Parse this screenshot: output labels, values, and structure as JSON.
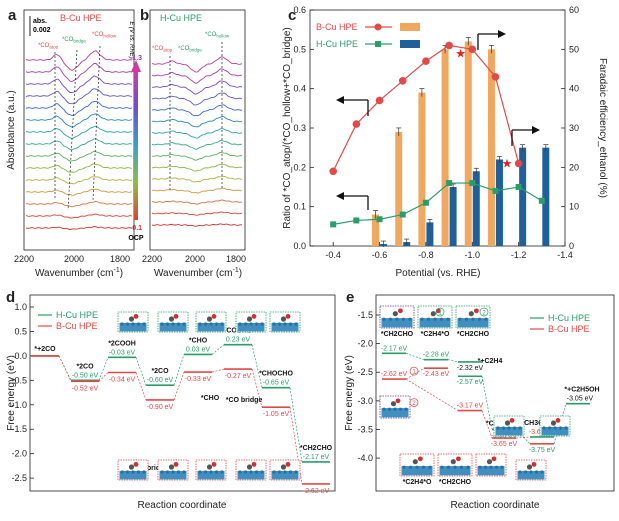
{
  "colors": {
    "bcu": "#e24a4a",
    "hcu": "#2a9d6a",
    "bar_b": "#f0a860",
    "bar_h": "#1f5f9a"
  },
  "panel_a": {
    "letter": "a",
    "legend": "B-Cu HPE",
    "scale": "abs.",
    "scale_val": "0.002",
    "peaks": [
      "*CO",
      "*CO",
      "*CO"
    ],
    "peak_subs": [
      "atop",
      "bridge",
      "hollow"
    ],
    "x_ticks": [
      "2200",
      "2000",
      "1800"
    ],
    "xlabel": "Wavenumber (cm",
    "xlabel_sup": "-1",
    "xlabel_end": ")",
    "ylabel": "Absorbance (a.u.)"
  },
  "panel_b": {
    "letter": "b",
    "legend": "H-Cu HPE",
    "peaks": [
      "*CO",
      "*CO",
      "*CO"
    ],
    "peak_subs": [
      "atop",
      "bridge",
      "hollow"
    ],
    "x_ticks": [
      "2200",
      "2000",
      "1800"
    ],
    "xlabel": "Wavenumber (cm",
    "xlabel_sup": "-1",
    "xlabel_end": ")",
    "ylabel": "Absorbance (a.u.)",
    "potential_label": "E (V vs. RHE)",
    "pot_top": "-1.3",
    "pot_bottom": "-0.1",
    "pot_ocp": "OCP"
  },
  "chart_data": {
    "type": "bar",
    "title": "",
    "x": [
      -0.4,
      -0.5,
      -0.6,
      -0.7,
      -0.8,
      -0.9,
      -1.0,
      -1.1,
      -1.2,
      -1.3
    ],
    "xlabel": "Potential (vs. RHE)",
    "x_ticks": [
      "-0.4",
      "-0.6",
      "-0.8",
      "-1.0",
      "-1.2",
      "-1.4"
    ],
    "y_left_label": "Ratio of *CO_atop/(*CO_hollow+*CO_bridge)",
    "y_left_ticks": [
      "0.0",
      "0.1",
      "0.2",
      "0.3",
      "0.4",
      "0.5",
      "0.6"
    ],
    "y_right_label": "Faradaic efficiency_ethanol (%)",
    "y_right_ticks": [
      "0",
      "10",
      "20",
      "30",
      "40",
      "50",
      "60"
    ],
    "series": [
      {
        "name": "B-Cu HPE ratio",
        "axis": "left",
        "x": [
          -0.4,
          -0.5,
          -0.6,
          -0.7,
          -0.8,
          -0.9,
          -1.0,
          -1.1,
          -1.2
        ],
        "values": [
          0.19,
          0.31,
          0.37,
          0.42,
          0.47,
          0.51,
          0.5,
          0.43,
          0.21
        ]
      },
      {
        "name": "H-Cu HPE ratio",
        "axis": "left",
        "x": [
          -0.4,
          -0.5,
          -0.6,
          -0.7,
          -0.8,
          -0.9,
          -1.0,
          -1.1,
          -1.2,
          -1.3
        ],
        "values": [
          0.055,
          0.065,
          0.068,
          0.08,
          0.11,
          0.16,
          0.16,
          0.14,
          0.15,
          0.115
        ]
      },
      {
        "name": "B-Cu HPE FE ethanol",
        "axis": "right",
        "x": [
          -0.6,
          -0.7,
          -0.8,
          -0.9,
          -1.0,
          -1.1
        ],
        "values": [
          8,
          29,
          39,
          50,
          52,
          50
        ]
      },
      {
        "name": "H-Cu HPE FE ethanol",
        "axis": "right",
        "x": [
          -0.6,
          -0.7,
          -0.8,
          -0.9,
          -1.0,
          -1.1,
          -1.2,
          -1.3
        ],
        "values": [
          0.5,
          1,
          6,
          15,
          19,
          22,
          25,
          25
        ]
      }
    ],
    "panel_letter": "c",
    "legend": [
      "B-Cu HPE",
      "H-Cu HPE"
    ]
  },
  "panel_d": {
    "letter": "d",
    "legend": [
      "H-Cu HPE",
      "B-Cu HPE"
    ],
    "xlabel": "Reaction coordinate",
    "ylabel": "Free energy (eV)",
    "y_ticks": [
      "1.0",
      "0.5",
      "0.0",
      "-0.5",
      "-1.0",
      "-1.5",
      "-2.0",
      "-2.5"
    ],
    "states": [
      {
        "label": "*+2CO",
        "h": "",
        "b": ""
      },
      {
        "label": "*2CO",
        "h": "-0.50 eV",
        "b": "-0.52 eV"
      },
      {
        "label": "*2COOH",
        "h": "-0.03 eV",
        "b": "-0.34 eV"
      },
      {
        "label": "*2CO",
        "h": "-0.60 eV",
        "b": "-0.90 eV"
      },
      {
        "label": "*CHO",
        "h": "0.03 eV",
        "b": "-0.33 eV"
      },
      {
        "label": "*COCHO",
        "h": "0.23 eV",
        "b": "-0.27 eV"
      },
      {
        "label": "*CHOCHO",
        "h": "-0.65 eV",
        "b": "-1.05 eV"
      },
      {
        "label": "*CH2CHO",
        "h": "-2.17 eV",
        "b": "-2.62 eV"
      }
    ],
    "annotations": [
      "*CO",
      "*CO",
      "*CHO",
      "*CO",
      "*CHO",
      "*CO",
      "*CO"
    ],
    "ann_subs": [
      "bridge",
      "hollow",
      "",
      "bridge",
      "",
      "bridge",
      "atop"
    ]
  },
  "panel_e": {
    "letter": "e",
    "legend": [
      "H-Cu HPE",
      "B-Cu HPE"
    ],
    "xlabel": "Reaction coordinate",
    "ylabel": "Free energy (eV)",
    "y_ticks": [
      "-1.5",
      "-2.0",
      "-2.5",
      "-3.0",
      "-3.5",
      "-4.0"
    ],
    "tags": [
      "*CH2CHO",
      "*C2H4*O",
      "*CH2CHO",
      "*C2H4*O",
      "*CH2CHO"
    ],
    "energies": [
      "-2.17 eV",
      "-2.28 eV",
      "-2.32 eV",
      "-2.62 eV",
      "-2.43 eV",
      "-2.57 eV",
      "-3.17 eV",
      "-3.50 eV",
      "-3.63 eV",
      "-3.65 eV",
      "-3.75 eV",
      "-3.05 eV"
    ],
    "species": [
      "*+C2H4",
      "*CH2CH2O",
      "*CH3CH2OH",
      "*+C2H5OH"
    ],
    "circles": [
      "1",
      "2"
    ]
  }
}
